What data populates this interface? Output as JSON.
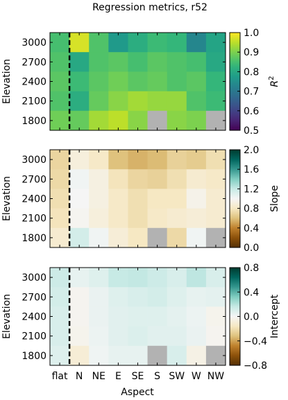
{
  "title": "Regression metrics, r52",
  "chart_data": {
    "type": "heatmap",
    "title": "Regression metrics, r52",
    "x_categories": [
      "flat",
      "N",
      "NE",
      "E",
      "SE",
      "S",
      "SW",
      "W",
      "NW"
    ],
    "y_categories": [
      "3000",
      "2700",
      "2400",
      "2100",
      "1800"
    ],
    "xlabel": "Aspect",
    "ylabel": "Elevation",
    "divider_after_column": "flat",
    "missing_color": "#b2b2b2",
    "panels": [
      {
        "colorbar_label": "R²",
        "colorbar_label_latex": "R^2",
        "colorscale": "viridis",
        "vmin": 0.5,
        "vmax": 1.0,
        "colorbar_ticks": [
          "0.5",
          "0.6",
          "0.7",
          "0.8",
          "0.9",
          "1.0"
        ],
        "values": [
          [
            0.85,
            0.97,
            0.86,
            0.77,
            0.81,
            0.84,
            0.83,
            0.73,
            0.79
          ],
          [
            0.86,
            0.8,
            0.86,
            0.87,
            0.85,
            0.87,
            0.86,
            0.85,
            0.8
          ],
          [
            0.87,
            0.84,
            0.87,
            0.89,
            0.87,
            0.88,
            0.86,
            0.87,
            0.83
          ],
          [
            0.86,
            0.81,
            0.88,
            0.91,
            0.93,
            0.92,
            0.92,
            0.86,
            0.84
          ],
          [
            0.89,
            0.88,
            0.93,
            0.95,
            0.91,
            null,
            0.91,
            0.9,
            null
          ]
        ]
      },
      {
        "colorbar_label": "Slope",
        "colorscale": "BrBG",
        "vmin": 0.0,
        "vmax": 2.0,
        "colorbar_ticks": [
          "0.0",
          "0.4",
          "0.8",
          "1.2",
          "1.6",
          "2.0"
        ],
        "values": [
          [
            0.7,
            0.9,
            0.82,
            0.6,
            0.55,
            0.58,
            0.68,
            0.65,
            0.75
          ],
          [
            0.72,
            1.02,
            0.92,
            0.78,
            0.7,
            0.68,
            0.75,
            0.85,
            0.82
          ],
          [
            0.75,
            1.0,
            0.92,
            0.82,
            0.75,
            0.8,
            0.8,
            0.95,
            0.85
          ],
          [
            0.78,
            0.98,
            0.9,
            0.82,
            0.75,
            0.82,
            0.85,
            0.88,
            0.85
          ],
          [
            0.85,
            1.15,
            1.02,
            0.88,
            0.8,
            null,
            0.72,
            1.02,
            null
          ]
        ]
      },
      {
        "colorbar_label": "Intercept",
        "colorscale": "BrBG",
        "vmin": -0.8,
        "vmax": 0.8,
        "colorbar_ticks": [
          "−0.8",
          "−0.4",
          "0.0",
          "0.4",
          "0.8"
        ],
        "values": [
          [
            0.14,
            0.05,
            0.08,
            0.16,
            0.17,
            0.14,
            0.1,
            0.18,
            0.1
          ],
          [
            0.12,
            -0.02,
            0.04,
            0.08,
            0.1,
            0.12,
            0.08,
            0.05,
            0.06
          ],
          [
            0.1,
            -0.02,
            0.04,
            0.07,
            0.08,
            0.08,
            0.06,
            0.03,
            -0.03
          ],
          [
            0.1,
            -0.03,
            0.03,
            0.07,
            0.09,
            0.07,
            0.07,
            0.04,
            -0.02
          ],
          [
            0.08,
            -0.1,
            0.02,
            0.05,
            0.05,
            null,
            0.1,
            -0.05,
            null
          ]
        ]
      }
    ]
  }
}
